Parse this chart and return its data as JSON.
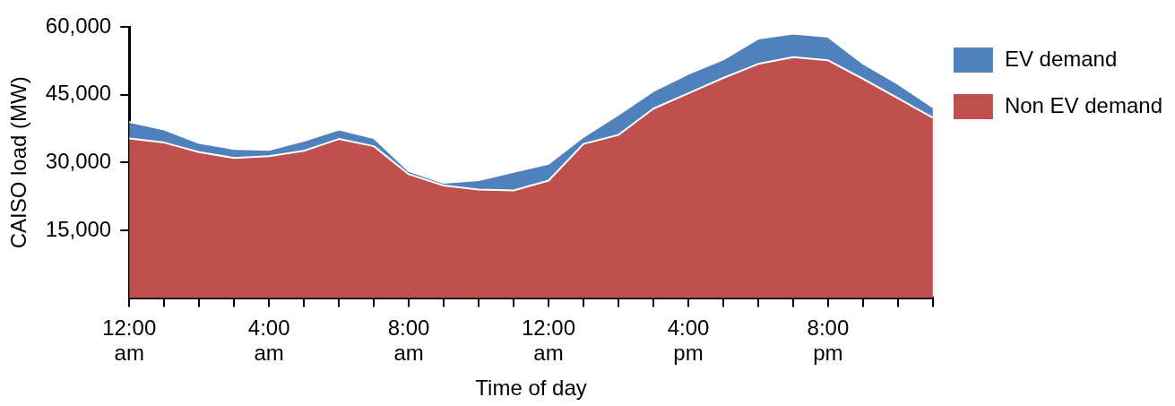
{
  "chart_data": {
    "type": "area",
    "stacked": true,
    "xlabel": "Time of day",
    "ylabel": "CAISO load (MW)",
    "x": [
      0,
      1,
      2,
      3,
      4,
      5,
      6,
      7,
      8,
      9,
      10,
      11,
      12,
      13,
      14,
      15,
      16,
      17,
      18,
      19,
      20,
      21,
      22,
      23
    ],
    "series": [
      {
        "name": "Non EV demand",
        "color": "#c0504d",
        "values": [
          35300,
          34400,
          32300,
          31000,
          31400,
          32600,
          35200,
          33600,
          27400,
          24900,
          24000,
          23800,
          26000,
          34100,
          36100,
          41900,
          45300,
          48700,
          51800,
          53300,
          52600,
          48500,
          44200,
          39900
        ]
      },
      {
        "name": "EV demand",
        "color": "#4f81bd",
        "values": [
          3700,
          2900,
          2000,
          2000,
          1400,
          2200,
          2100,
          1800,
          700,
          600,
          2100,
          4100,
          3700,
          1600,
          4500,
          3900,
          4300,
          4100,
          5600,
          5200,
          5200,
          3400,
          3200,
          2300
        ]
      }
    ],
    "xlim": [
      0,
      23
    ],
    "xticks": [
      {
        "value": 0,
        "label": "12:00 am"
      },
      {
        "value": 1,
        "label": null
      },
      {
        "value": 2,
        "label": null
      },
      {
        "value": 3,
        "label": null
      },
      {
        "value": 4,
        "label": "4:00 am"
      },
      {
        "value": 5,
        "label": null
      },
      {
        "value": 6,
        "label": null
      },
      {
        "value": 7,
        "label": null
      },
      {
        "value": 8,
        "label": "8:00 am"
      },
      {
        "value": 9,
        "label": null
      },
      {
        "value": 10,
        "label": null
      },
      {
        "value": 11,
        "label": null
      },
      {
        "value": 12,
        "label": "12:00 am"
      },
      {
        "value": 13,
        "label": null
      },
      {
        "value": 14,
        "label": null
      },
      {
        "value": 15,
        "label": null
      },
      {
        "value": 16,
        "label": "4:00 pm"
      },
      {
        "value": 17,
        "label": null
      },
      {
        "value": 18,
        "label": null
      },
      {
        "value": 19,
        "label": null
      },
      {
        "value": 20,
        "label": "8:00 pm"
      },
      {
        "value": 21,
        "label": null
      },
      {
        "value": 22,
        "label": null
      },
      {
        "value": 23,
        "label": null
      }
    ],
    "ylim": [
      0,
      60000
    ],
    "yticks": [
      {
        "value": 15000,
        "label": "15,000"
      },
      {
        "value": 30000,
        "label": "30,000"
      },
      {
        "value": 45000,
        "label": "45,000"
      },
      {
        "value": 60000,
        "label": "60,000"
      }
    ],
    "legend": "top right",
    "grid": false
  }
}
